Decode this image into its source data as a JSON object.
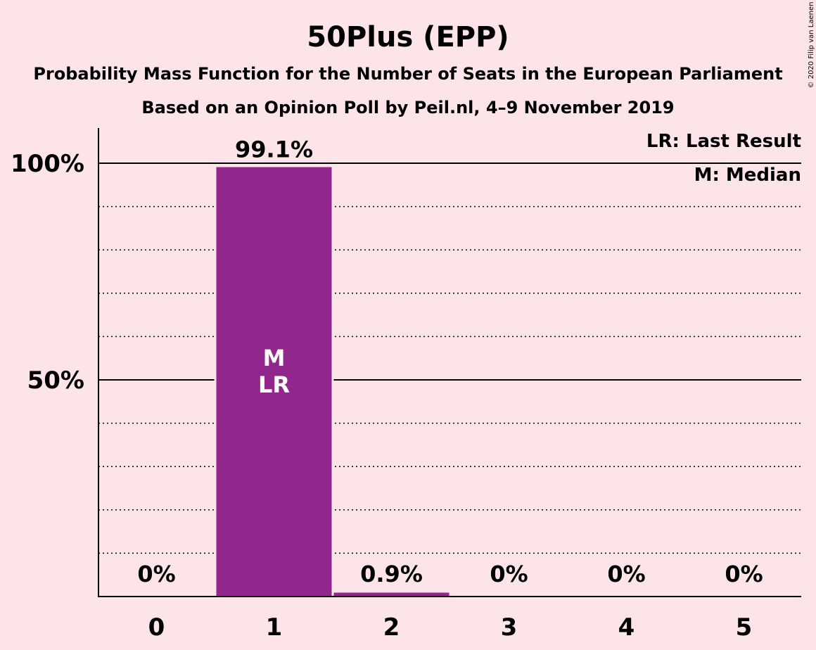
{
  "title": "50Plus (EPP)",
  "subtitle1": "Probability Mass Function for the Number of Seats in the European Parliament",
  "subtitle2": "Based on an Opinion Poll by Peil.nl, 4–9 November 2019",
  "credit": "© 2020 Filip van Laenen",
  "legend": {
    "last_result": "LR: Last Result",
    "median": "M: Median"
  },
  "colors": {
    "background": "#fce4e8",
    "bar": "#91278d",
    "bar_label": "#ffffff"
  },
  "chart_data": {
    "type": "bar",
    "categories": [
      "0",
      "1",
      "2",
      "3",
      "4",
      "5"
    ],
    "values": [
      0,
      99.1,
      0.9,
      0,
      0,
      0
    ],
    "value_labels": [
      "0%",
      "99.1%",
      "0.9%",
      "0%",
      "0%",
      "0%"
    ],
    "ylim": [
      0,
      100
    ],
    "yticks": [
      {
        "value": 50,
        "label": "50%"
      },
      {
        "value": 100,
        "label": "100%"
      }
    ],
    "minor_grid": [
      10,
      20,
      30,
      40,
      60,
      70,
      80,
      90
    ],
    "median_category": "1",
    "median_mark": "M",
    "last_result_category": "1",
    "last_result_mark": "LR",
    "legend_position": "top-right"
  }
}
